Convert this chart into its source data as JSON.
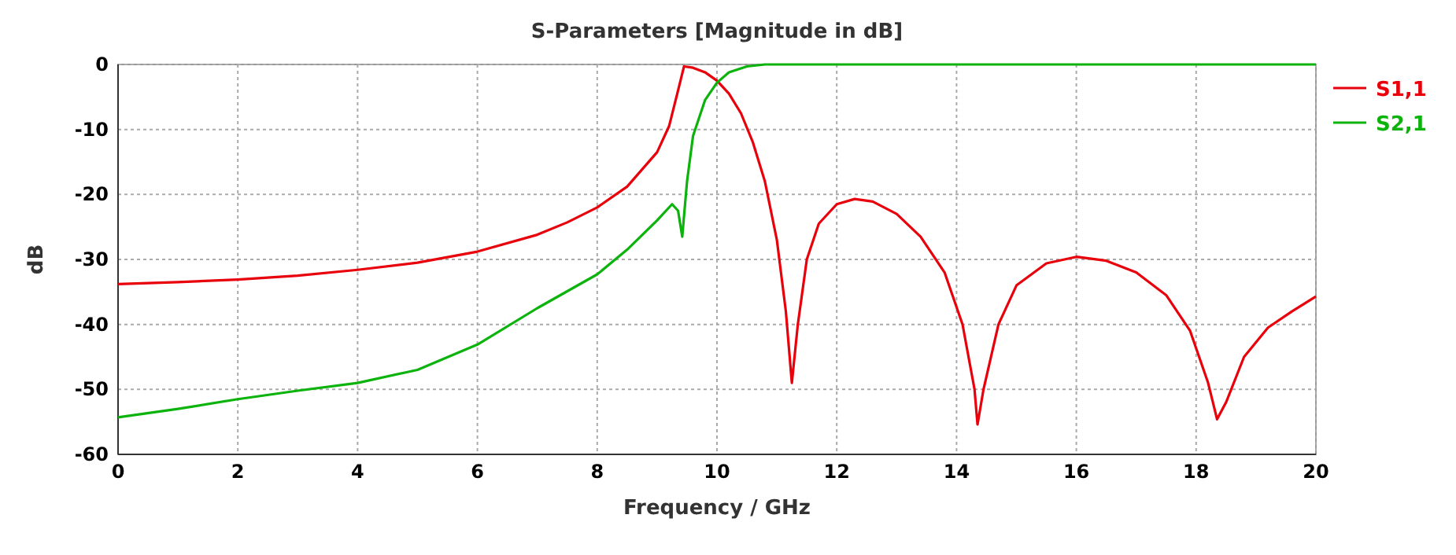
{
  "chart_data": {
    "type": "line",
    "title": "S-Parameters [Magnitude in dB]",
    "xlabel": "Frequency / GHz",
    "ylabel": "dB",
    "xlim": [
      0,
      20
    ],
    "xticks": [
      0,
      2,
      4,
      6,
      8,
      10,
      12,
      14,
      16,
      18,
      20
    ],
    "ylim": [
      -60,
      0
    ],
    "yticks": [
      -60,
      -50,
      -40,
      -30,
      -20,
      -10,
      0
    ],
    "grid": true,
    "legend": "top right",
    "marker": "none",
    "line_style": "solid",
    "series": [
      {
        "name": "S1,1",
        "color": "#e8000b",
        "x": [
          0,
          1,
          2,
          3,
          4,
          5,
          6,
          7,
          7.5,
          8,
          8.5,
          9,
          9.2,
          9.35,
          9.45,
          9.6,
          9.8,
          10,
          10.2,
          10.4,
          10.6,
          10.8,
          11,
          11.15,
          11.25,
          11.35,
          11.5,
          11.7,
          12,
          12.3,
          12.6,
          13,
          13.4,
          13.8,
          14.1,
          14.3,
          14.35,
          14.45,
          14.7,
          15,
          15.5,
          16,
          16.5,
          17,
          17.5,
          17.9,
          18.2,
          18.35,
          18.5,
          18.8,
          19.2,
          19.6,
          20
        ],
        "values": [
          -33.8,
          -33.5,
          -33.1,
          -32.5,
          -31.6,
          -30.5,
          -28.8,
          -26.2,
          -24.3,
          -22,
          -18.8,
          -13.5,
          -9.5,
          -4,
          -0.3,
          -0.5,
          -1.2,
          -2.5,
          -4.5,
          -7.5,
          -12,
          -18,
          -27,
          -38,
          -49,
          -40,
          -30,
          -24.5,
          -21.5,
          -20.7,
          -21.1,
          -23,
          -26.5,
          -32,
          -40,
          -50,
          -55.4,
          -50,
          -40,
          -34,
          -30.6,
          -29.6,
          -30.2,
          -32,
          -35.5,
          -41,
          -49,
          -54.6,
          -52,
          -45,
          -40.5,
          -38,
          -35.7
        ]
      },
      {
        "name": "S2,1",
        "color": "#0cb30c",
        "x": [
          0,
          1,
          2,
          3,
          4,
          5,
          6,
          7,
          8,
          8.5,
          9,
          9.25,
          9.35,
          9.42,
          9.5,
          9.6,
          9.8,
          10,
          10.2,
          10.5,
          10.8,
          20
        ],
        "values": [
          -54.3,
          -53,
          -51.5,
          -50.2,
          -49,
          -47,
          -43.1,
          -37.5,
          -32.3,
          -28.5,
          -24,
          -21.5,
          -22.5,
          -26.5,
          -18,
          -11,
          -5.5,
          -2.8,
          -1.2,
          -0.3,
          0,
          0
        ]
      }
    ]
  }
}
